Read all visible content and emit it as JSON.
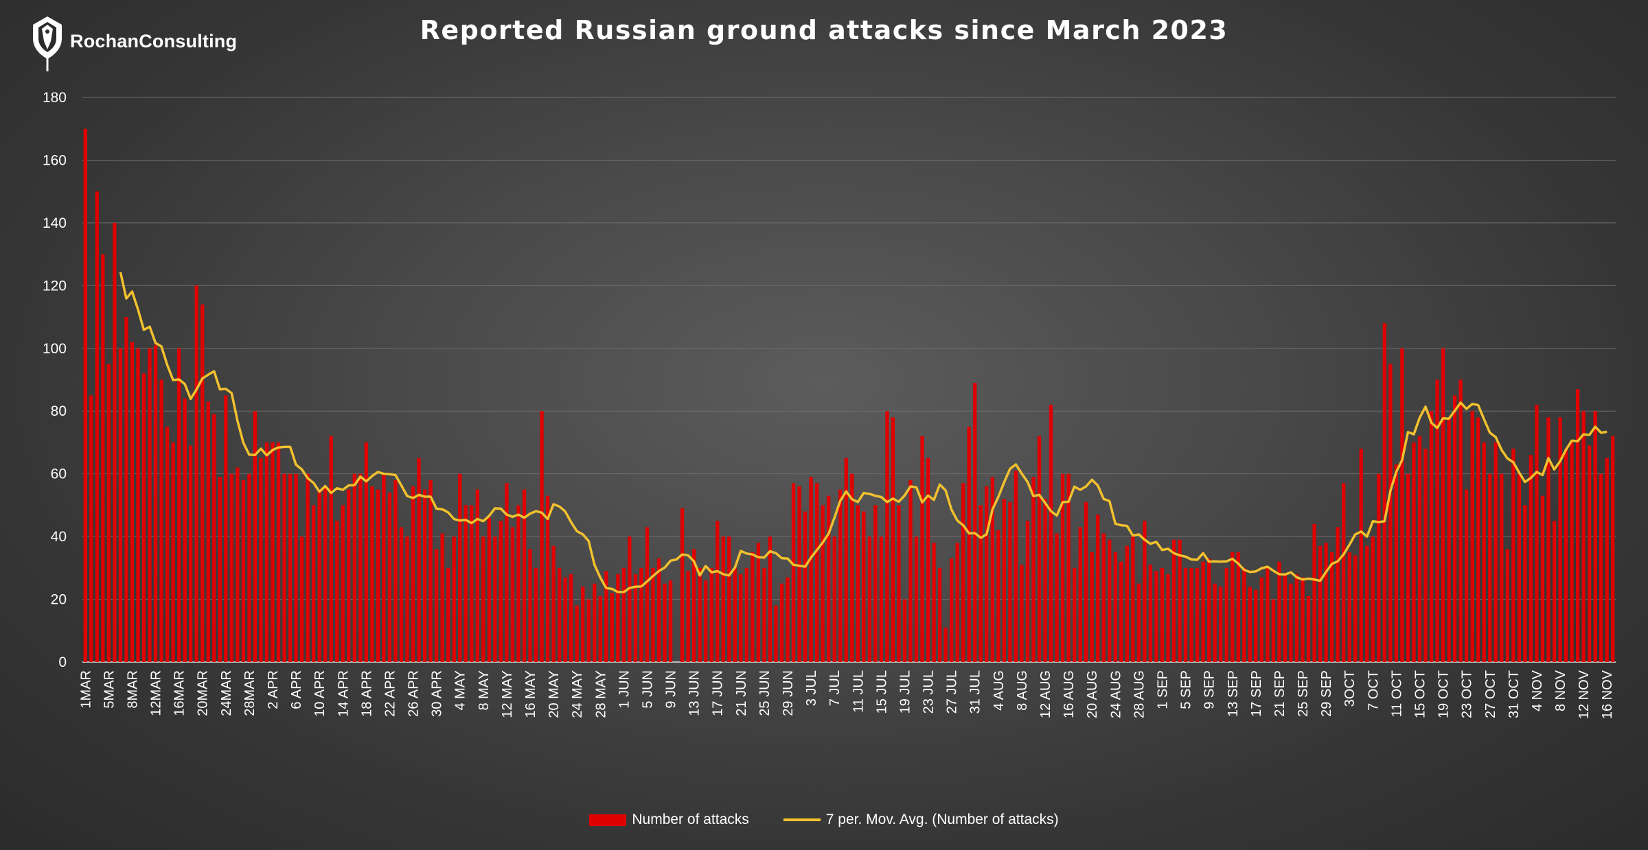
{
  "header": {
    "logo_text": "RochanConsulting",
    "title": "Reported Russian ground attacks since March 2023"
  },
  "legend": {
    "bars_label": "Number of attacks",
    "line_label": "7 per. Mov. Avg. (Number of attacks)"
  },
  "colors": {
    "bar": "#e00000",
    "line": "#f2c12e",
    "grid": "#6e6e6e",
    "axis_text": "#ffffff"
  },
  "chart_data": {
    "type": "bar",
    "title": "Reported Russian ground attacks since March 2023",
    "xlabel": "",
    "ylabel": "",
    "ylim": [
      0,
      180
    ],
    "yticks": [
      0,
      20,
      40,
      60,
      80,
      100,
      120,
      140,
      160,
      180
    ],
    "grid": true,
    "legend_position": "bottom",
    "start_label": "1MAR",
    "x_tick_labels": [
      "1MAR",
      "5MAR",
      "8MAR",
      "12MAR",
      "16MAR",
      "20MAR",
      "24MAR",
      "28MAR",
      "2 APR",
      "6 APR",
      "10 APR",
      "14 APR",
      "18 APR",
      "22 APR",
      "26 APR",
      "30 APR",
      "4 MAY",
      "8 MAY",
      "12 MAY",
      "16 MAY",
      "20 MAY",
      "24 MAY",
      "28 MAY",
      "1 JUN",
      "5 JUN",
      "9 JUN",
      "13 JUN",
      "17 JUN",
      "21 JUN",
      "25 JUN",
      "29 JUN",
      "3 JUL",
      "7 JUL",
      "11 JUL",
      "15 JUL",
      "19 JUL",
      "23 JUL",
      "27 JUL",
      "31 JUL",
      "4 AUG",
      "8 AUG",
      "12 AUG",
      "16 AUG",
      "20 AUG",
      "24 AUG",
      "28 AUG",
      "1 SEP",
      "5 SEP",
      "9 SEP",
      "13 SEP",
      "17 SEP",
      "21 SEP",
      "25 SEP",
      "29 SEP",
      "3OCT",
      "7 OCT",
      "11 OCT",
      "15 OCT",
      "19 OCT",
      "23 OCT",
      "27 OCT",
      "31 OCT",
      "4 NOV",
      "8 NOV",
      "12 NOV",
      "16 NOV"
    ],
    "series": [
      {
        "name": "Number of attacks",
        "type": "bar",
        "values": [
          170,
          85,
          150,
          130,
          95,
          140,
          100,
          110,
          102,
          100,
          92,
          100,
          101,
          90,
          75,
          70,
          100,
          84,
          69,
          120,
          114,
          83,
          79,
          59,
          85,
          60,
          62,
          58,
          60,
          80,
          65,
          70,
          70,
          70,
          60,
          60,
          60,
          40,
          60,
          50,
          55,
          56,
          72,
          45,
          50,
          55,
          60,
          60,
          70,
          56,
          55,
          60,
          54,
          58,
          43,
          40,
          56,
          65,
          55,
          58,
          36,
          41,
          30,
          40,
          60,
          50,
          50,
          55,
          40,
          46,
          40,
          45,
          57,
          43,
          50,
          55,
          36,
          30,
          80,
          53,
          37,
          30,
          27,
          28,
          18,
          24,
          20,
          25,
          21,
          29,
          22,
          28,
          30,
          40,
          28,
          30,
          43,
          30,
          33,
          25,
          26,
          0,
          49,
          29,
          36,
          30,
          26,
          30,
          45,
          40,
          40,
          30,
          28,
          30,
          35,
          38,
          30,
          40,
          18,
          25,
          27,
          57,
          56,
          48,
          59,
          57,
          50,
          53,
          40,
          55,
          65,
          60,
          50,
          48,
          40,
          50,
          40,
          80,
          78,
          50,
          20,
          58,
          40,
          72,
          65,
          38,
          30,
          11,
          33,
          38,
          57,
          75,
          89,
          50,
          56,
          59,
          42,
          52,
          51,
          61,
          31,
          45,
          59,
          72,
          52,
          82,
          41,
          60,
          60,
          30,
          43,
          51,
          35,
          47,
          41,
          39,
          35,
          32,
          37,
          40,
          25,
          45,
          31,
          29,
          30,
          28,
          39,
          39,
          30,
          30,
          30,
          32,
          33,
          25,
          24,
          30,
          35,
          35,
          30,
          24,
          23,
          27,
          30,
          20,
          32,
          28,
          25,
          28,
          27,
          21,
          44,
          37,
          38,
          35,
          43,
          57,
          35,
          34,
          68,
          37,
          40,
          60,
          108,
          95,
          63,
          100,
          60,
          70,
          72,
          68,
          80,
          90,
          100,
          78,
          85,
          90,
          55,
          80,
          78,
          70,
          60,
          70,
          60,
          36,
          68,
          60,
          50,
          66,
          82,
          53,
          78,
          45,
          78,
          68,
          70,
          87,
          80,
          69,
          80,
          60,
          65,
          72
        ]
      },
      {
        "name": "7 per. Mov. Avg. (Number of attacks)",
        "type": "line",
        "start_index": 6,
        "values": [
          124.3,
          115.9,
          118.1,
          112.4,
          105.9,
          106.9,
          101.7,
          100.6,
          94.7,
          89.9,
          90.1,
          88.6,
          83.9,
          86.9,
          90.4,
          91.6,
          92.7,
          86.9,
          87.1,
          85.7,
          76.9,
          69.9,
          66.1,
          66.0,
          68.0,
          65.9,
          67.6,
          68.4,
          68.6,
          68.6,
          62.9,
          61.4,
          58.6,
          57.1,
          54.3,
          56.1,
          53.9,
          55.4,
          54.9,
          56.3,
          56.4,
          59.1,
          57.6,
          59.3,
          60.6,
          60.0,
          59.9,
          59.6,
          56.3,
          52.9,
          52.3,
          53.3,
          52.7,
          52.7,
          48.9,
          48.7,
          47.7,
          45.6,
          45.1,
          45.3,
          44.3,
          45.6,
          44.9,
          46.6,
          49.0,
          48.9,
          47.0,
          46.3,
          47.0,
          46.0,
          47.3,
          48.1,
          47.6,
          45.6,
          50.3,
          49.6,
          48.0,
          44.6,
          41.7,
          40.7,
          38.6,
          31.0,
          26.9,
          23.6,
          23.3,
          22.3,
          22.3,
          23.6,
          24.0,
          24.1,
          25.7,
          27.4,
          29.0,
          30.1,
          32.3,
          32.7,
          34.3,
          34.0,
          32.1,
          27.6,
          30.6,
          28.6,
          29.0,
          28.0,
          27.6,
          30.1,
          35.4,
          34.6,
          34.3,
          33.4,
          33.3,
          35.3,
          34.7,
          33.1,
          33.0,
          31.0,
          30.7,
          30.4,
          33.3,
          35.7,
          38.1,
          40.9,
          46.0,
          51.4,
          54.4,
          51.9,
          51.0,
          53.9,
          53.6,
          53.0,
          52.6,
          51.0,
          52.1,
          51.1,
          53.1,
          56.0,
          55.7,
          50.9,
          53.1,
          51.7,
          56.6,
          54.7,
          48.6,
          45.1,
          43.6,
          41.0,
          41.1,
          39.6,
          40.7,
          48.6,
          52.6,
          57.3,
          61.6,
          63.0,
          60.1,
          57.4,
          52.9,
          53.3,
          50.7,
          48.1,
          46.7,
          51.0,
          51.1,
          55.9,
          54.9,
          56.0,
          58.1,
          56.3,
          52.0,
          51.3,
          44.1,
          43.6,
          43.4,
          40.3,
          40.7,
          39.0,
          37.7,
          38.3,
          35.7,
          36.1,
          34.7,
          34.0,
          33.6,
          32.7,
          32.6,
          34.7,
          32.0,
          32.1,
          32.0,
          32.1,
          32.9,
          31.4,
          29.4,
          28.7,
          28.9,
          29.9,
          30.4,
          29.1,
          28.0,
          27.9,
          28.6,
          27.0,
          26.3,
          26.6,
          26.3,
          25.9,
          28.7,
          31.3,
          32.1,
          34.3,
          37.4,
          40.7,
          41.6,
          40.0,
          44.9,
          44.6,
          44.9,
          54.6,
          60.6,
          64.4,
          73.3,
          72.6,
          77.9,
          81.4,
          76.3,
          74.6,
          77.7,
          77.6,
          80.1,
          82.7,
          80.7,
          82.3,
          81.9,
          77.4,
          73.1,
          71.7,
          67.6,
          64.9,
          63.7,
          60.4,
          57.4,
          58.7,
          60.6,
          59.6,
          65.0,
          61.4,
          64.0,
          67.7,
          70.6,
          70.4,
          72.6,
          72.4,
          75.0,
          73.1,
          73.4
        ]
      }
    ]
  }
}
